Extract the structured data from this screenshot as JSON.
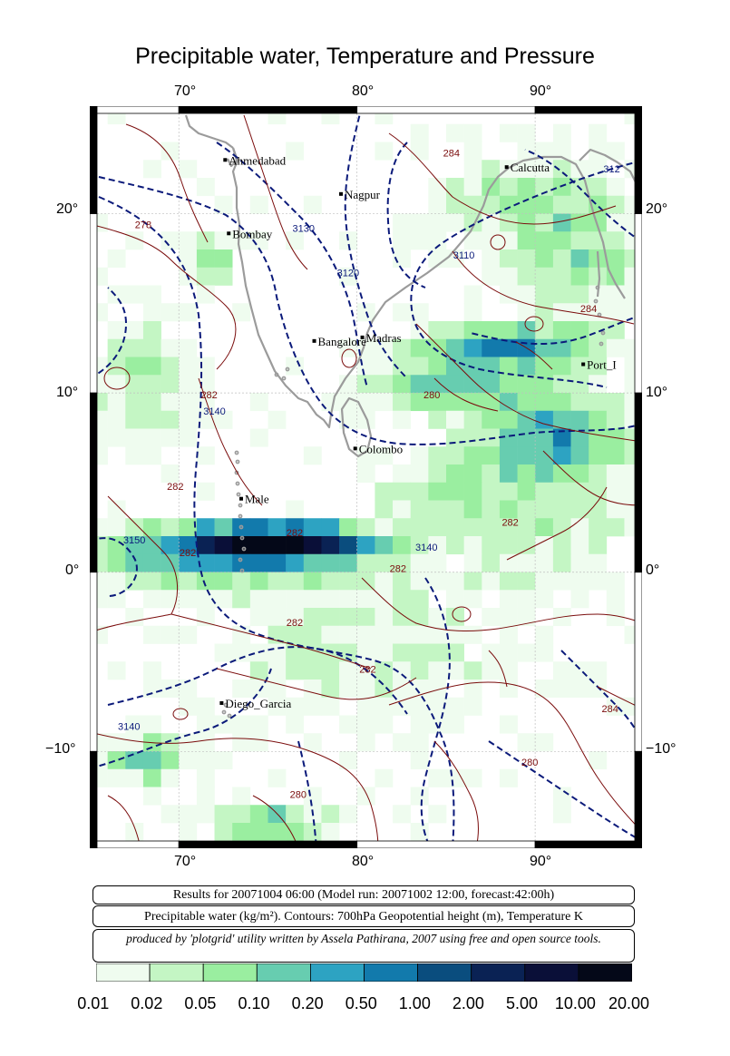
{
  "title": "Precipitable water, Temperature and Pressure",
  "lon_ticks": [
    "70°",
    "80°",
    "90°"
  ],
  "lat_ticks": [
    "20°",
    "10°",
    "0°",
    "−10°"
  ],
  "cities": [
    {
      "name": "Ahmedabad",
      "lon": 72.6,
      "lat": 23.0
    },
    {
      "name": "Calcutta",
      "lon": 88.4,
      "lat": 22.6
    },
    {
      "name": "Nagpur",
      "lon": 79.1,
      "lat": 21.1
    },
    {
      "name": "Bombay",
      "lon": 72.8,
      "lat": 18.9
    },
    {
      "name": "Madras",
      "lon": 80.3,
      "lat": 13.1
    },
    {
      "name": "Bangalore",
      "lon": 77.6,
      "lat": 12.9
    },
    {
      "name": "Port_I",
      "lon": 92.7,
      "lat": 11.6
    },
    {
      "name": "Colombo",
      "lon": 79.9,
      "lat": 6.9
    },
    {
      "name": "Male",
      "lon": 73.5,
      "lat": 4.1
    },
    {
      "name": "Diego_Garcia",
      "lon": 72.4,
      "lat": -7.3
    }
  ],
  "contour_labels": [
    {
      "text": "278",
      "lon": 68.0,
      "lat": 19.2,
      "kind": "temp"
    },
    {
      "text": "3130",
      "lon": 77.0,
      "lat": 19.0,
      "kind": "height"
    },
    {
      "text": "3120",
      "lon": 79.5,
      "lat": 16.5,
      "kind": "height"
    },
    {
      "text": "284",
      "lon": 85.3,
      "lat": 23.2,
      "kind": "temp"
    },
    {
      "text": "3110",
      "lon": 86.0,
      "lat": 17.5,
      "kind": "height"
    },
    {
      "text": "312",
      "lon": 94.3,
      "lat": 22.3,
      "kind": "height"
    },
    {
      "text": "284",
      "lon": 93.0,
      "lat": 14.5,
      "kind": "temp"
    },
    {
      "text": "282",
      "lon": 71.7,
      "lat": 9.7,
      "kind": "temp"
    },
    {
      "text": "3140",
      "lon": 72.0,
      "lat": 8.8,
      "kind": "height"
    },
    {
      "text": "280",
      "lon": 84.2,
      "lat": 9.7,
      "kind": "temp"
    },
    {
      "text": "282",
      "lon": 69.8,
      "lat": 4.6,
      "kind": "temp"
    },
    {
      "text": "3150",
      "lon": 67.5,
      "lat": 1.6,
      "kind": "height"
    },
    {
      "text": "282",
      "lon": 70.5,
      "lat": 0.9,
      "kind": "temp"
    },
    {
      "text": "282",
      "lon": 76.5,
      "lat": 2.0,
      "kind": "temp"
    },
    {
      "text": "3140",
      "lon": 83.9,
      "lat": 1.2,
      "kind": "height"
    },
    {
      "text": "282",
      "lon": 82.3,
      "lat": 0.0,
      "kind": "temp"
    },
    {
      "text": "282",
      "lon": 88.6,
      "lat": 2.6,
      "kind": "temp"
    },
    {
      "text": "282",
      "lon": 76.5,
      "lat": -3.0,
      "kind": "temp"
    },
    {
      "text": "282",
      "lon": 80.6,
      "lat": -5.6,
      "kind": "temp"
    },
    {
      "text": "3140",
      "lon": 67.2,
      "lat": -8.8,
      "kind": "height"
    },
    {
      "text": "284",
      "lon": 94.2,
      "lat": -7.8,
      "kind": "temp"
    },
    {
      "text": "280",
      "lon": 89.7,
      "lat": -10.8,
      "kind": "temp"
    },
    {
      "text": "280",
      "lon": 76.7,
      "lat": -12.6,
      "kind": "temp"
    }
  ],
  "info": {
    "results": "Results for 20071004 06:00 (Model run: 20071002 12:00, forecast:42:00h)",
    "legend": "Precipitable water (kg/m²).  Contours: 700hPa Geopotential height (m), Temperature K",
    "credit": "produced by 'plotgrid' utility written by Assela Pathirana, 2007 using free and open source tools."
  },
  "colorbar": {
    "labels": [
      "0.01",
      "0.02",
      "0.05",
      "0.10",
      "0.20",
      "0.50",
      "1.00",
      "2.00",
      "5.00",
      "10.00",
      "20.00"
    ],
    "colors": [
      "#effcef",
      "#c4f6c4",
      "#9aeea0",
      "#67cdb0",
      "#2da3c2",
      "#127aac",
      "#0a4d7e",
      "#0a2254",
      "#0a0f38",
      "#040818"
    ]
  }
}
